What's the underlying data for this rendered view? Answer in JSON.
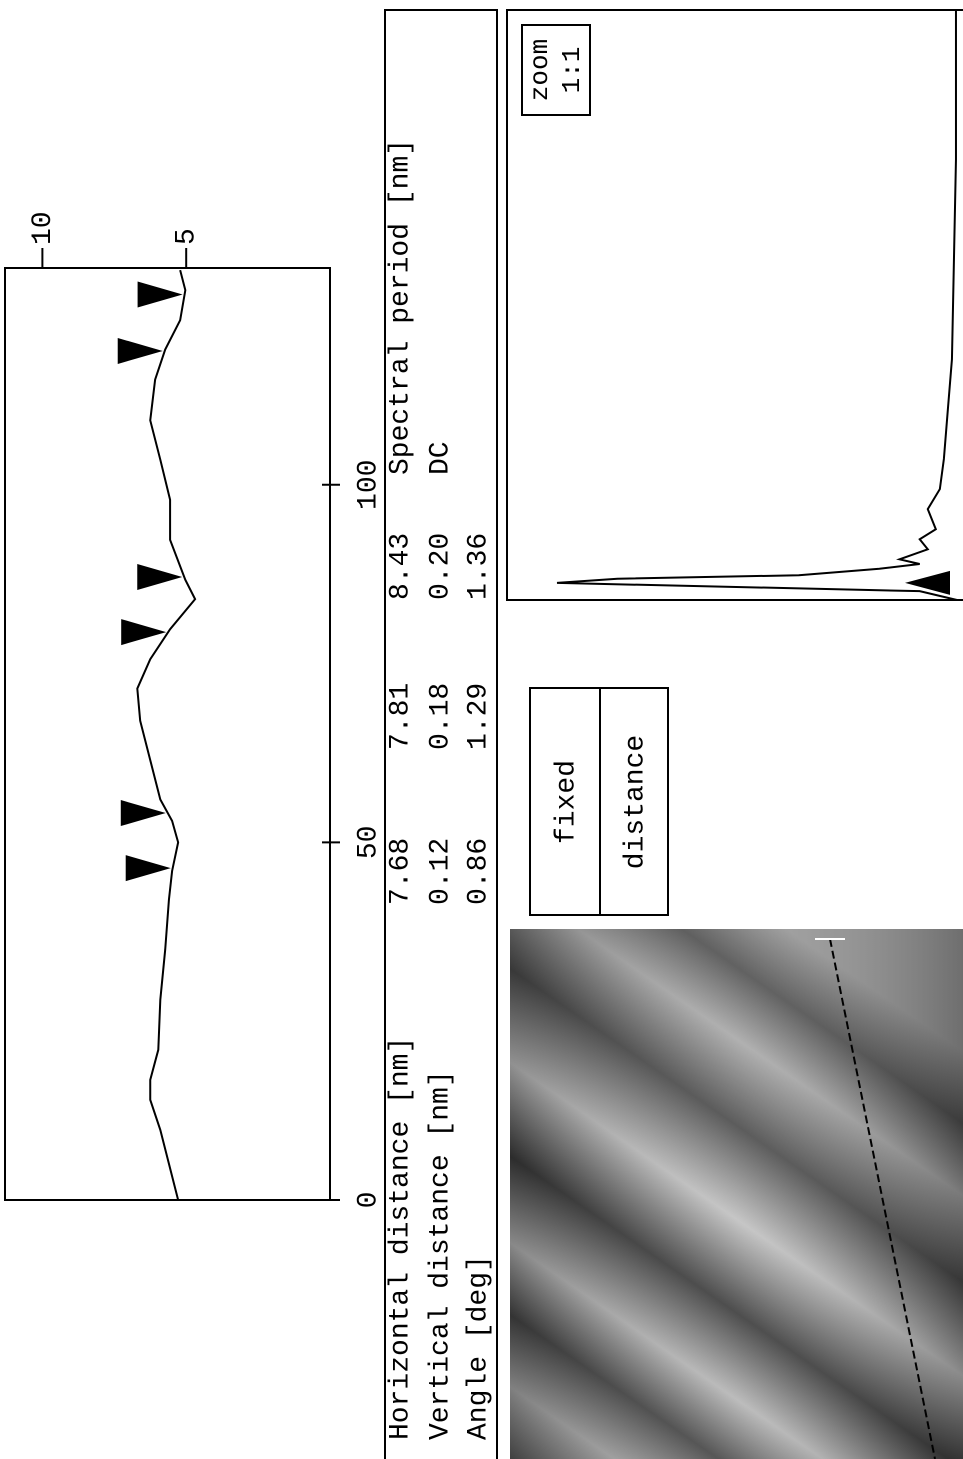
{
  "chart_data": [
    {
      "type": "line",
      "x": [
        0,
        9.8,
        14,
        16.8,
        21,
        28,
        35,
        42,
        46,
        50,
        53,
        56,
        61.5,
        67,
        71.5,
        75.6,
        79.8,
        84,
        86.7,
        92.3,
        97.9,
        103.5,
        109,
        114.7,
        118.9,
        123,
        127.2,
        130
      ],
      "values": [
        5.28,
        5.9,
        6.25,
        6.25,
        5.97,
        5.9,
        5.73,
        5.6,
        5.49,
        5.28,
        5.49,
        5.9,
        6.25,
        6.6,
        6.7,
        6.25,
        5.56,
        4.69,
        5.03,
        5.56,
        5.56,
        5.9,
        6.25,
        6.08,
        5.73,
        5.21,
        5.03,
        5.21
      ],
      "markers": [
        46.4,
        54.1,
        79.4,
        87.1,
        118.7,
        126.6
      ],
      "xlim": [
        0,
        130.3
      ],
      "ylim": [
        0,
        11.3
      ],
      "xticks": [
        0,
        50,
        100
      ],
      "yticks": [
        5,
        10
      ],
      "color": "#000000"
    },
    {
      "type": "line",
      "x": [
        0,
        1.5,
        2.9,
        3.6,
        4.2,
        5.3,
        6.1,
        6.9,
        8.6,
        10.3,
        12,
        15.4,
        18.8,
        23.9,
        32.4,
        40.8,
        57.8,
        74.7,
        100
      ],
      "values": [
        0.75,
        10,
        100,
        85,
        40,
        20,
        10,
        15,
        8,
        10,
        6,
        8,
        5,
        4,
        3,
        2,
        1.5,
        1,
        1
      ],
      "markers": [
        2.9
      ],
      "xlim": [
        0,
        100
      ],
      "ylim": [
        0,
        100
      ],
      "color": "#000000"
    }
  ],
  "table": {
    "rows": [
      [
        "Horizontal distance [nm]",
        "7.68",
        "7.81",
        "8.43",
        "Spectral period [nm]"
      ],
      [
        "Vertical distance [nm]",
        "0.12",
        "0.18",
        "0.20",
        "DC"
      ],
      [
        "Angle [deg]",
        "0.86",
        "1.29",
        "1.36"
      ]
    ]
  },
  "button": {
    "label_top": "fixed",
    "label_bottom": "distance"
  },
  "zoom": {
    "line1": "zoom",
    "line2": "1:1"
  }
}
